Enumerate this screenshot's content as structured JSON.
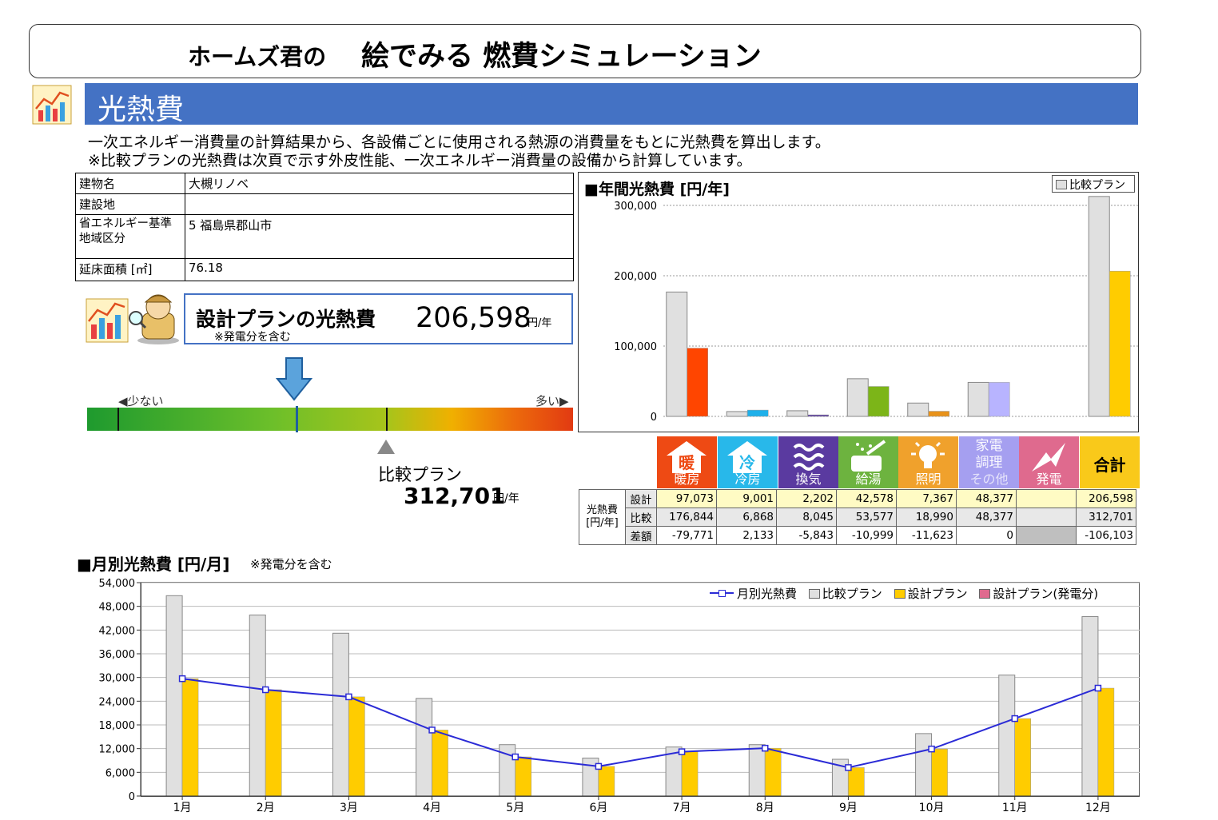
{
  "header": {
    "brand": "ホームズ君の",
    "title": "絵でみる 燃費シミュレーション"
  },
  "section": {
    "title": "光熱費",
    "intro_line1": "一次エネルギー消費量の計算結果から、各設備ごとに使用される熱源の消費量をもとに光熱費を算出します。",
    "intro_line2": "※比較プランの光熱費は次頁で示す外皮性能、一次エネルギー消費量の設備から計算しています。"
  },
  "building": {
    "rows": [
      {
        "key": "建物名",
        "value": "大槻リノベ"
      },
      {
        "key": "建設地",
        "value": ""
      },
      {
        "key": "省エネルギー基準地域区分",
        "value": "5  福島県郡山市"
      },
      {
        "key": "延床面積 [㎡]",
        "value": "76.18"
      }
    ]
  },
  "design_plan": {
    "label": "設計プランの光熱費",
    "note": "※発電分を含む",
    "value": "206,598",
    "unit": "円/年"
  },
  "gauge": {
    "less_label": "◀少ない",
    "more_label": "多い▶",
    "design_position": 0.43,
    "compare_position": 0.615,
    "tick_positions": [
      0.062,
      0.615
    ]
  },
  "compare_plan": {
    "label": "比較プラン",
    "value": "312,701",
    "unit": "円/年"
  },
  "annual_chart": {
    "title": "■年間光熱費 [円/年]",
    "legend": "比較プラン",
    "categories": [
      {
        "name": "暖房",
        "icon_text": "暖",
        "color": "#ee4a14"
      },
      {
        "name": "冷房",
        "icon_text": "冷",
        "color": "#28b8ea"
      },
      {
        "name": "換気",
        "icon_text": "",
        "color": "#5a3aa0"
      },
      {
        "name": "給湯",
        "icon_text": "",
        "color": "#6db33f"
      },
      {
        "name": "照明",
        "icon_text": "",
        "color": "#f0a12c"
      },
      {
        "name": "その他",
        "icon_text": "家電\n調理",
        "color": "#a59ff0"
      },
      {
        "name": "発電",
        "icon_text": "",
        "color": "#df6a8e"
      },
      {
        "name": "合計",
        "icon_text": "",
        "color": "#f9c91a"
      }
    ],
    "table": {
      "group_label": "光熱費\n[円/年]",
      "rows": [
        {
          "label": "設計",
          "values": [
            "97,073",
            "9,001",
            "2,202",
            "42,578",
            "7,367",
            "48,377",
            "",
            "206,598"
          ]
        },
        {
          "label": "比較",
          "values": [
            "176,844",
            "6,868",
            "8,045",
            "53,577",
            "18,990",
            "48,377",
            "",
            "312,701"
          ]
        },
        {
          "label": "差額",
          "values": [
            "-79,771",
            "2,133",
            "-5,843",
            "-10,999",
            "-11,623",
            "0",
            "",
            "-106,103"
          ]
        }
      ]
    }
  },
  "chart_data": [
    {
      "type": "bar",
      "title": "■年間光熱費 [円/年]",
      "categories": [
        "暖房",
        "冷房",
        "換気",
        "給湯",
        "照明",
        "その他",
        "発電",
        "合計"
      ],
      "series": [
        {
          "name": "比較プラン",
          "color": "#e0e0e0",
          "values": [
            176844,
            6868,
            8045,
            53577,
            18990,
            48377,
            0,
            312701
          ]
        },
        {
          "color": "multi",
          "values": [
            97073,
            9001,
            2202,
            42578,
            7367,
            48377,
            0,
            206598
          ]
        }
      ],
      "bar_colors_design": [
        "#ff4500",
        "#1eb0ea",
        "#5a3aa0",
        "#7cb518",
        "#e8921a",
        "#b8b4ff",
        "#df6a8e",
        "#ffcc00"
      ],
      "ylim": [
        0,
        300000
      ],
      "yticks": [
        "0",
        "100,000",
        "200,000",
        "300,000"
      ],
      "grid": true,
      "legend": "top-right"
    },
    {
      "type": "bar",
      "title": "■月別光熱費 [円/月]",
      "note": "※発電分を含む",
      "categories": [
        "1月",
        "2月",
        "3月",
        "4月",
        "5月",
        "6月",
        "7月",
        "8月",
        "9月",
        "10月",
        "11月",
        "12月"
      ],
      "series": [
        {
          "name": "比較プラン",
          "type": "bar",
          "color": "#e0e0e0",
          "values": [
            50700,
            45800,
            41200,
            24700,
            13000,
            9600,
            12400,
            13000,
            9300,
            15800,
            30600,
            45400
          ]
        },
        {
          "name": "設計プラン",
          "type": "bar",
          "color": "#ffcc00",
          "values": [
            29700,
            26900,
            25100,
            16700,
            9900,
            7500,
            11200,
            12100,
            7200,
            11900,
            19600,
            27300
          ]
        },
        {
          "name": "設計プラン(発電分)",
          "type": "bar",
          "color": "#df6a8e",
          "values": [
            0,
            0,
            0,
            0,
            0,
            0,
            0,
            0,
            0,
            0,
            0,
            0
          ]
        },
        {
          "name": "月別光熱費",
          "type": "line",
          "color": "#2b2bd6",
          "values": [
            29700,
            26900,
            25100,
            16700,
            9900,
            7500,
            11200,
            12100,
            7200,
            11900,
            19600,
            27300
          ]
        }
      ],
      "ylim": [
        0,
        54000
      ],
      "yticks": [
        "0",
        "6,000",
        "12,000",
        "18,000",
        "24,000",
        "30,000",
        "36,000",
        "42,000",
        "48,000",
        "54,000"
      ],
      "grid": true,
      "legend": "top-right"
    }
  ],
  "monthly_chart": {
    "title": "■月別光熱費 [円/月]",
    "note": "※発電分を含む",
    "legend": [
      "月別光熱費",
      "比較プラン",
      "設計プラン",
      "設計プラン(発電分)"
    ]
  }
}
